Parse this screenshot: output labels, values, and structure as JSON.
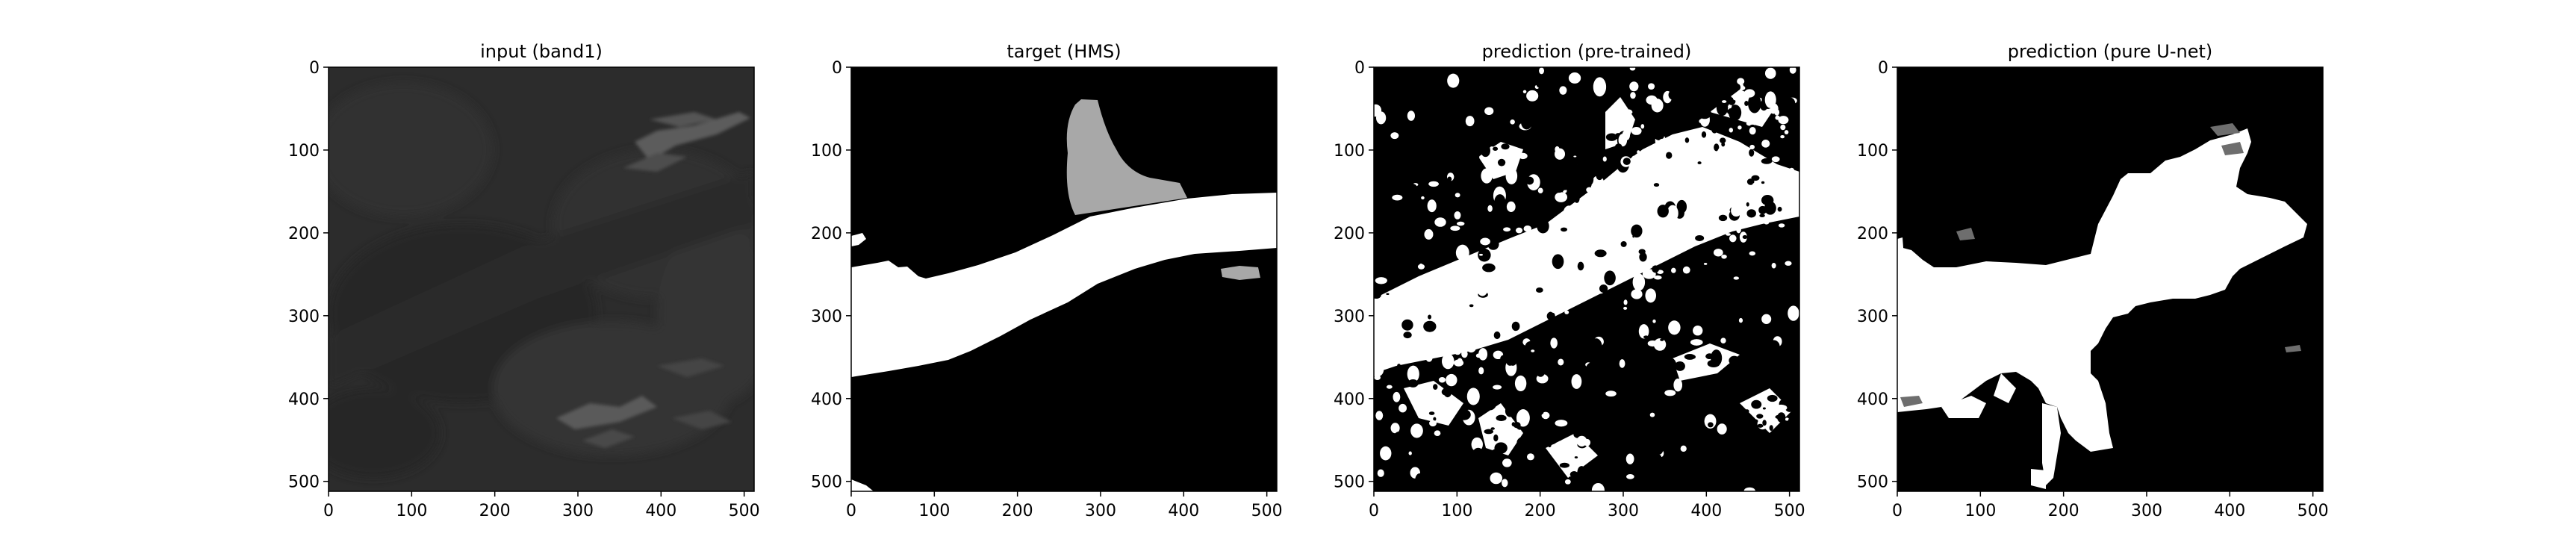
{
  "figure": {
    "panels": [
      {
        "id": "input",
        "title": "input (band1)"
      },
      {
        "id": "target",
        "title": "target (HMS)"
      },
      {
        "id": "pretrained",
        "title": "prediction (pre-trained)"
      },
      {
        "id": "unet",
        "title": "prediction (pure U-net)"
      }
    ]
  },
  "chart_data": [
    {
      "type": "heatmap",
      "title": "input (band1)",
      "xlim": [
        0,
        512
      ],
      "ylim": [
        512,
        0
      ],
      "xticks": [
        0,
        100,
        200,
        300,
        400,
        500
      ],
      "yticks": [
        0,
        100,
        200,
        300,
        400,
        500
      ],
      "colormap": "gray",
      "content": "dark satellite image band with bright cloud streaks near upper-right and lower-middle"
    },
    {
      "type": "heatmap",
      "title": "target (HMS)",
      "xlim": [
        0,
        512
      ],
      "ylim": [
        512,
        0
      ],
      "xticks": [
        0,
        100,
        200,
        300,
        400,
        500
      ],
      "yticks": [
        0,
        100,
        200,
        300,
        400,
        500
      ],
      "colormap": "gray",
      "levels": [
        "black: background",
        "white: smoke",
        "gray: secondary smoke region"
      ]
    },
    {
      "type": "heatmap",
      "title": "prediction (pre-trained)",
      "xlim": [
        0,
        512
      ],
      "ylim": [
        512,
        0
      ],
      "xticks": [
        0,
        100,
        200,
        300,
        400,
        500
      ],
      "yticks": [
        0,
        100,
        200,
        300,
        400,
        500
      ],
      "colormap": "gray",
      "content": "binary speckled mask, white diagonal band from lower-left to upper-right"
    },
    {
      "type": "heatmap",
      "title": "prediction (pure U-net)",
      "xlim": [
        0,
        512
      ],
      "ylim": [
        512,
        0
      ],
      "xticks": [
        0,
        100,
        200,
        300,
        400,
        500
      ],
      "yticks": [
        0,
        100,
        200,
        300,
        400,
        500
      ],
      "colormap": "gray",
      "content": "blocky white mask in center-left with small gray patches"
    }
  ],
  "colors": {
    "background": "#000000",
    "foreground": "#ffffff",
    "gray_level": "#a9a9a9",
    "dark_gray_level": "#6e6e6e",
    "input_base": "#2b2b2b"
  }
}
